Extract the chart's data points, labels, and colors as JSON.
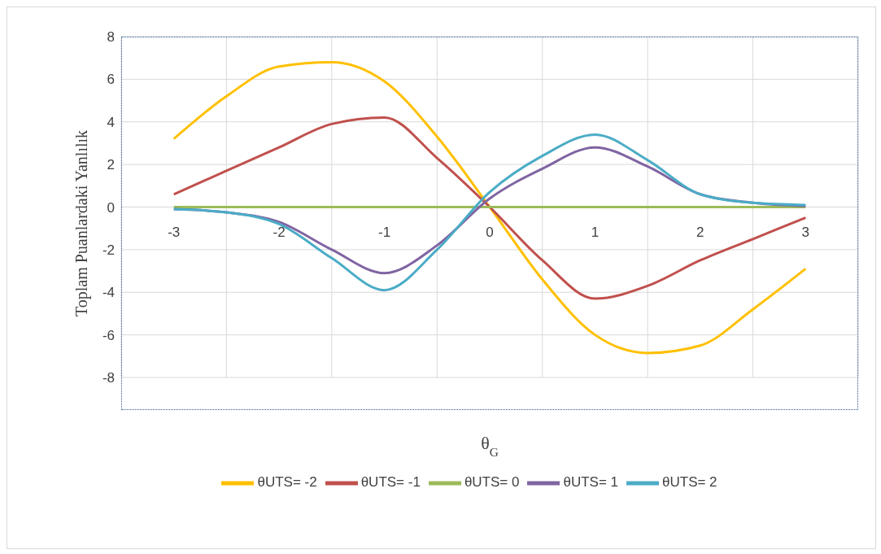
{
  "chart_data": {
    "type": "line",
    "xlabel": "θ$_{G}$",
    "ylabel": "Toplam Puanlardaki Yanlılık",
    "x": [
      -3,
      -2.5,
      -2,
      -1.5,
      -1,
      -0.5,
      0,
      0.5,
      1,
      1.5,
      2,
      2.5,
      3
    ],
    "series": [
      {
        "name": "θUTS= -2",
        "color": "#ffc000",
        "values": [
          3.2,
          5.2,
          6.6,
          6.8,
          5.9,
          3.3,
          0,
          -3.4,
          -6.0,
          -6.85,
          -6.5,
          -4.8,
          -2.9
        ]
      },
      {
        "name": "θUTS= -1",
        "color": "#c0504d",
        "values": [
          0.6,
          1.7,
          2.8,
          3.9,
          4.2,
          2.3,
          0,
          -2.5,
          -4.3,
          -3.7,
          -2.5,
          -1.5,
          -0.5
        ]
      },
      {
        "name": "θUTS= 0",
        "color": "#9bbb59",
        "values": [
          0,
          0,
          0,
          0,
          0,
          0,
          0,
          0,
          0,
          0,
          0,
          0,
          0
        ]
      },
      {
        "name": "θUTS= 1",
        "color": "#8064a2",
        "values": [
          -0.1,
          -0.25,
          -0.7,
          -2.0,
          -3.1,
          -1.8,
          0.4,
          1.8,
          2.8,
          1.9,
          0.6,
          0.2,
          0.05
        ]
      },
      {
        "name": "θUTS= 2",
        "color": "#4bacc6",
        "values": [
          -0.1,
          -0.25,
          -0.8,
          -2.4,
          -3.9,
          -2.0,
          0.7,
          2.4,
          3.4,
          2.2,
          0.6,
          0.2,
          0.1
        ]
      }
    ],
    "xlim": [
      -3.5,
      3.5
    ],
    "xticks": [
      {
        "value": -3.5,
        "label": null
      },
      -3,
      {
        "value": -2.5,
        "label": null
      },
      -2,
      {
        "value": -1.5,
        "label": null
      },
      -1,
      {
        "value": -0.5,
        "label": null
      },
      0,
      {
        "value": 0.5,
        "label": null
      },
      1,
      {
        "value": 1.5,
        "label": null
      },
      2,
      {
        "value": 2.5,
        "label": null
      },
      3,
      {
        "value": 3.5,
        "label": null
      }
    ],
    "ylim": [
      -8,
      8
    ],
    "yticks": [
      -8,
      -6,
      -4,
      -2,
      0,
      2,
      4,
      6,
      8
    ],
    "grid": true,
    "legend": "bottom",
    "marker": "none",
    "line_style": "solid"
  }
}
